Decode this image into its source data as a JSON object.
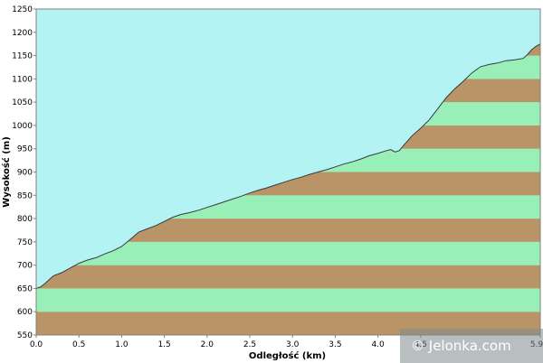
{
  "chart_data": {
    "type": "area",
    "title": "",
    "xlabel": "Odległość  (km)",
    "ylabel": "Wysokość (m)",
    "xlim": [
      0,
      5.9
    ],
    "ylim": [
      550,
      1250
    ],
    "x_ticks": [
      "0.0",
      "0.5",
      "1.0",
      "1.5",
      "2.0",
      "2.5",
      "3.0",
      "3.5",
      "4.0",
      "4.5",
      "5.9"
    ],
    "y_ticks": [
      "550",
      "600",
      "650",
      "700",
      "750",
      "800",
      "850",
      "900",
      "950",
      "1000",
      "1050",
      "1100",
      "1150",
      "1200",
      "1250"
    ],
    "series": [
      {
        "x": [
          0.0,
          0.05,
          0.1,
          0.2,
          0.3,
          0.4,
          0.5,
          0.6,
          0.7,
          0.8,
          0.9,
          1.0,
          1.1,
          1.2,
          1.3,
          1.4,
          1.5,
          1.6,
          1.7,
          1.8,
          1.9,
          2.0,
          2.1,
          2.2,
          2.3,
          2.4,
          2.5,
          2.6,
          2.7,
          2.8,
          2.9,
          3.0,
          3.1,
          3.2,
          3.3,
          3.4,
          3.5,
          3.6,
          3.7,
          3.8,
          3.9,
          4.0,
          4.1,
          4.15,
          4.2,
          4.25,
          4.3,
          4.4,
          4.5,
          4.6,
          4.7,
          4.8,
          4.9,
          5.0,
          5.1,
          5.2,
          5.3,
          5.4,
          5.5,
          5.6,
          5.7,
          5.75,
          5.8,
          5.85,
          5.9
        ],
        "y": [
          650,
          653,
          660,
          677,
          684,
          694,
          704,
          711,
          716,
          724,
          731,
          740,
          755,
          771,
          778,
          785,
          794,
          803,
          809,
          813,
          818,
          824,
          830,
          836,
          842,
          848,
          855,
          861,
          866,
          872,
          878,
          884,
          889,
          895,
          900,
          905,
          911,
          917,
          922,
          928,
          935,
          940,
          946,
          948,
          943,
          946,
          957,
          978,
          994,
          1012,
          1036,
          1060,
          1079,
          1095,
          1113,
          1126,
          1131,
          1134,
          1139,
          1141,
          1144,
          1152,
          1163,
          1170,
          1175
        ]
      }
    ],
    "band_colors": [
      "#b99466",
      "#98efb8"
    ],
    "sky_color": "#b4f3f3",
    "line_color": "#3a3a3a",
    "grid": false,
    "legend": "none"
  },
  "watermark": {
    "text": "© Jelonka.com"
  }
}
